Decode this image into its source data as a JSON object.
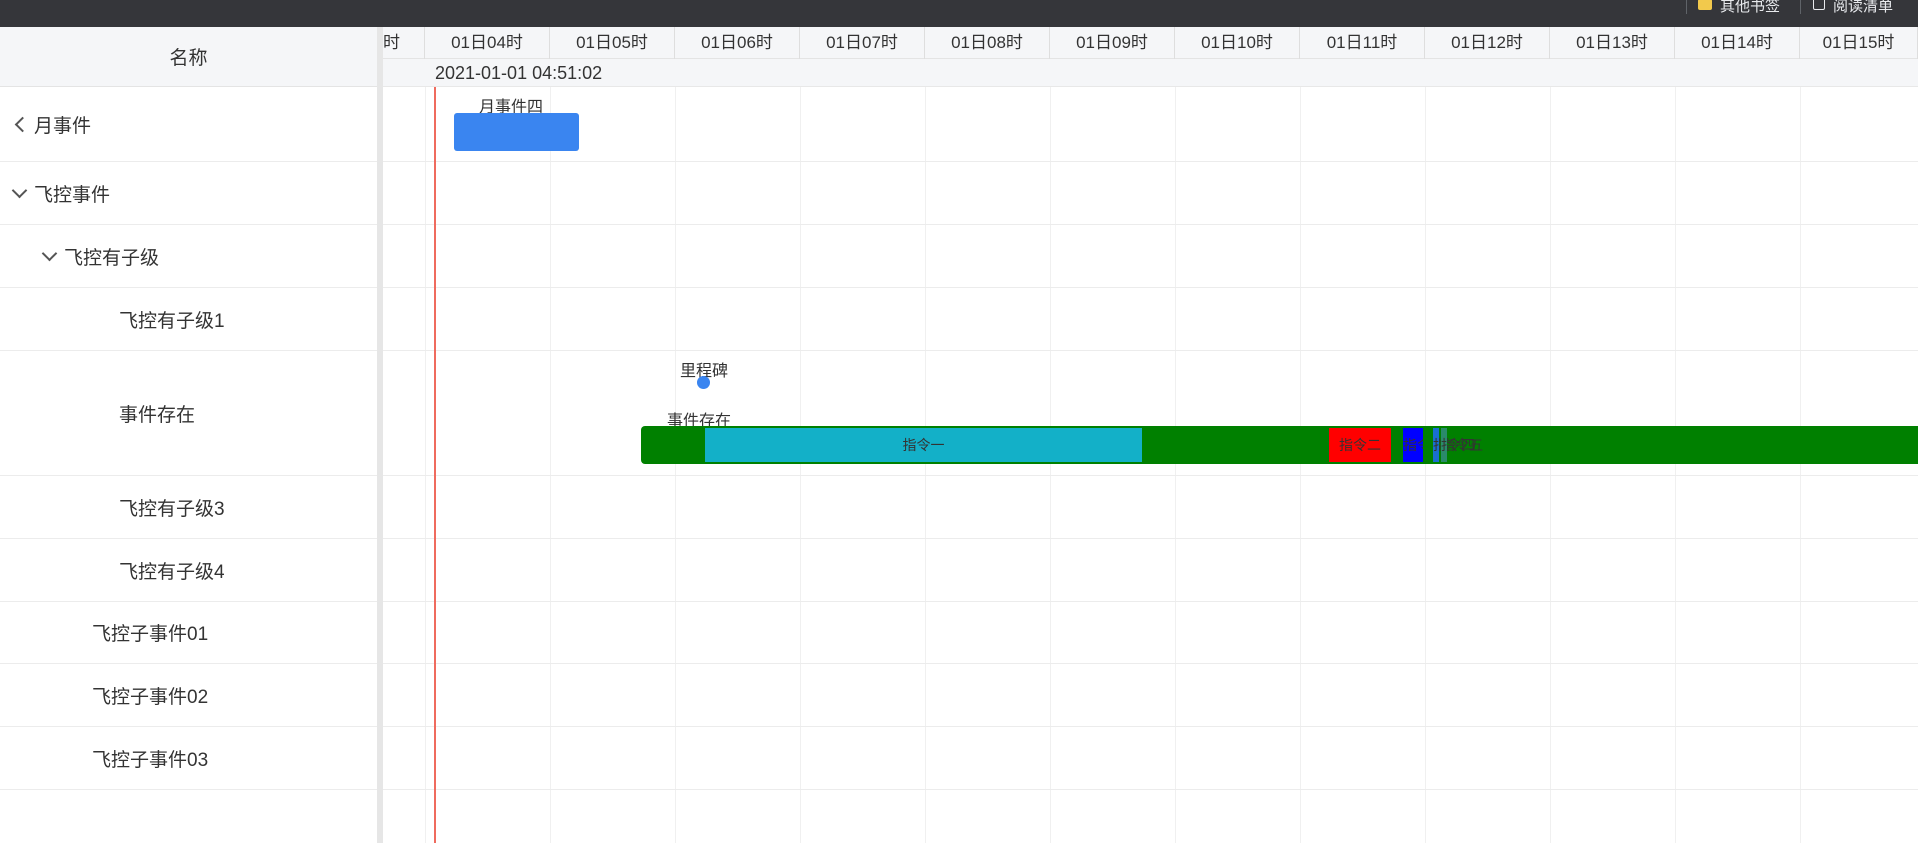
{
  "browser": {
    "bookmarks": [
      {
        "label": "其他书签",
        "icon": "folder-icon"
      },
      {
        "label": "阅读清单",
        "icon": "reading-list-icon"
      }
    ]
  },
  "left_panel": {
    "header": "名称",
    "rows": [
      {
        "label": "月事件",
        "toggle": "collapsed"
      },
      {
        "label": "飞控事件",
        "toggle": "expanded"
      },
      {
        "label": "飞控有子级",
        "toggle": "expanded"
      },
      {
        "label": "飞控有子级1",
        "toggle": "none"
      },
      {
        "label": "事件存在",
        "toggle": "none"
      },
      {
        "label": "飞控有子级3",
        "toggle": "none"
      },
      {
        "label": "飞控有子级4",
        "toggle": "none"
      },
      {
        "label": "飞控子事件01",
        "toggle": "none"
      },
      {
        "label": "飞控子事件02",
        "toggle": "none"
      },
      {
        "label": "飞控子事件03",
        "toggle": "none"
      }
    ]
  },
  "timeline": {
    "hours": [
      "时",
      "01日04时",
      "01日05时",
      "01日06时",
      "01日07时",
      "01日08时",
      "01日09时",
      "01日10时",
      "01日11时",
      "01日12时",
      "01日13时",
      "01日14时",
      "01日15时"
    ],
    "current_time": "2021-01-01 04:51:02",
    "events": [
      {
        "id": "month-4",
        "title": "月事件四",
        "text": "",
        "color": "#3a85f0"
      },
      {
        "id": "event-exists",
        "title": "事件存在",
        "text": "",
        "color": "#008000"
      },
      {
        "id": "cmd-1",
        "title": "",
        "text": "指令一",
        "color": "#13b0c8"
      },
      {
        "id": "cmd-2",
        "title": "",
        "text": "指令二",
        "color": "#ff0000"
      },
      {
        "id": "cmd-3",
        "title": "",
        "text": "指令三",
        "color": "#0000ff"
      },
      {
        "id": "cmd-4",
        "title": "",
        "text": "指令四",
        "color": "#1a6fd0"
      },
      {
        "id": "cmd-5",
        "title": "",
        "text": "指令五",
        "color": "#2a8a6a"
      }
    ],
    "milestone": {
      "title": "里程碑",
      "color": "#3a85f0"
    },
    "colors": {
      "now_line": "#ef6b5e",
      "header_bg": "#f5f6f8"
    }
  }
}
